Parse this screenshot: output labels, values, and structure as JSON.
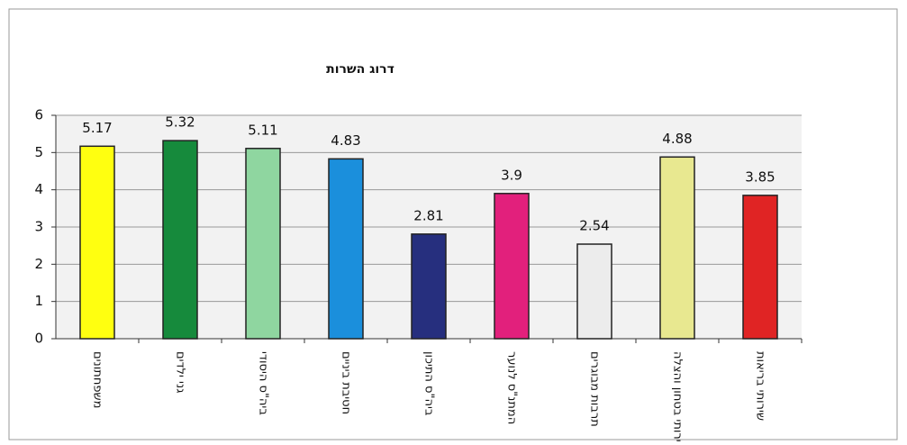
{
  "chart_data": {
    "type": "bar",
    "title": "דרוג השרות",
    "categories": [
      "משפחתונים",
      "גני ילדים",
      "ביה\"ס היסודי",
      "חטיבת ביניים",
      "ביה\"ס התיכון",
      "המתנ\"ס לנוער",
      "תרבות מבוגרים",
      "שירותי בטחון והצלה",
      "שירותי בריאות"
    ],
    "values": [
      5.17,
      5.32,
      5.11,
      4.83,
      2.81,
      3.9,
      2.54,
      4.88,
      3.85
    ],
    "colors": [
      "#ffff10",
      "#168a3c",
      "#8fd6a0",
      "#1b8fdc",
      "#262f7e",
      "#e2207c",
      "#ececec",
      "#e8e890",
      "#e02424"
    ],
    "ylim": [
      0,
      6
    ],
    "yticks": [
      0,
      1,
      2,
      3,
      4,
      5,
      6
    ],
    "grid": true
  }
}
